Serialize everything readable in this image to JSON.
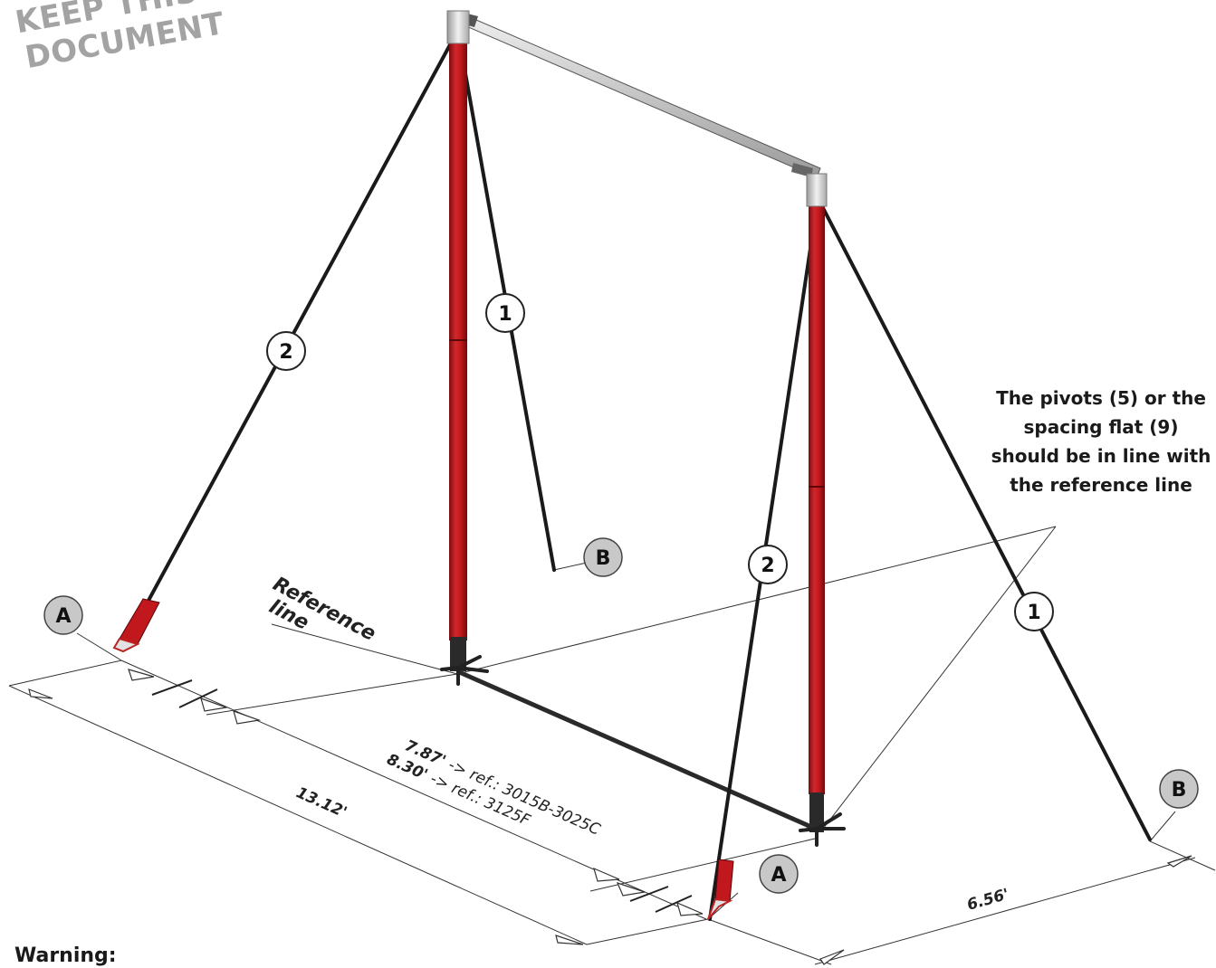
{
  "stamp": {
    "line1": "KEEP THIS",
    "line2": "DOCUMENT"
  },
  "note": {
    "line1": "The pivots (5) or the",
    "line2": "spacing flat (9)",
    "line3": "should be in line with",
    "line4": "the reference line"
  },
  "warning": "Warning:",
  "reference": {
    "line1": "Reference",
    "line2": "line"
  },
  "callouts": {
    "left_back_stay": "2",
    "left_front_stay": "1",
    "right_front_stay": "2",
    "right_back_stay": "1",
    "anchor_a_left": "A",
    "anchor_a_right": "A",
    "anchor_b_left": "B",
    "anchor_b_right": "B"
  },
  "dimensions": {
    "span_1_value": "7.87'",
    "span_1_ref": " -> ref.: 3015B-3025C",
    "span_2_value": "8.30'",
    "span_2_ref": " -> ref.: 3125F",
    "total_width": "13.12'",
    "depth": "6.56'"
  },
  "colors": {
    "post_red": "#c0181c",
    "post_dark": "#7a0c0e",
    "stay": "#1a1a1a",
    "crossbar": "#c4c4c4",
    "callout_fill": "#c8c8c8",
    "stamp_gray": "#a3a3a3"
  }
}
